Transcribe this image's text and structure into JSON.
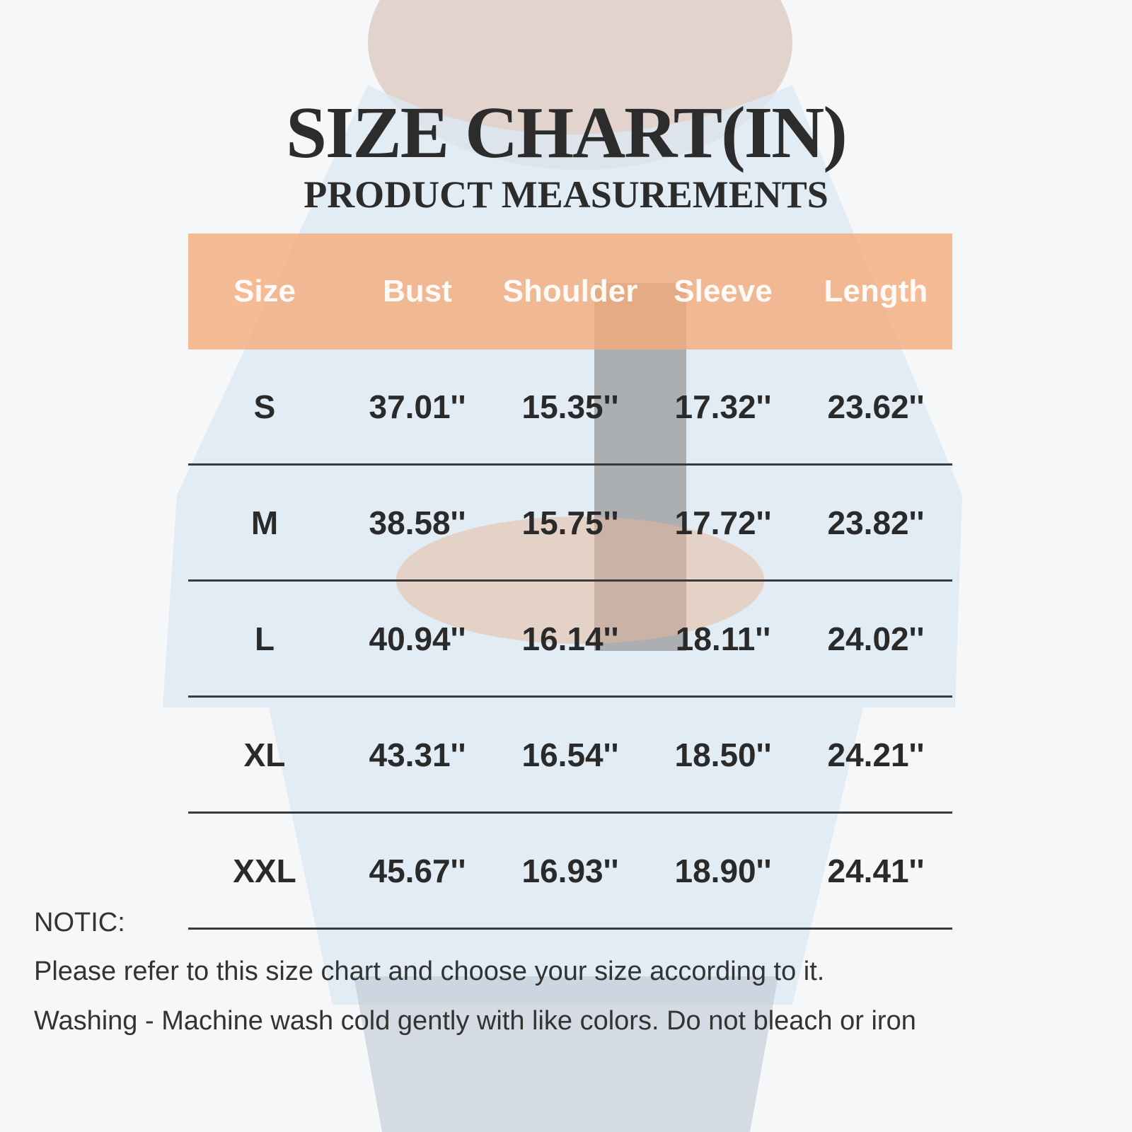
{
  "header": {
    "title": "SIZE CHART(IN)",
    "subtitle": "PRODUCT MEASUREMENTS"
  },
  "table": {
    "columns": [
      "Size",
      "Bust",
      "Shoulder",
      "Sleeve",
      "Length"
    ],
    "rows": [
      [
        "S",
        "37.01''",
        "15.35''",
        "17.32''",
        "23.62''"
      ],
      [
        "M",
        "38.58''",
        "15.75''",
        "17.72''",
        "23.82''"
      ],
      [
        "L",
        "40.94''",
        "16.14''",
        "18.11''",
        "24.02''"
      ],
      [
        "XL",
        "43.31''",
        "16.54''",
        "18.50''",
        "24.21''"
      ],
      [
        "XXL",
        "45.67''",
        "16.93''",
        "18.90''",
        "24.41''"
      ]
    ]
  },
  "notes": {
    "label": "NOTIC:",
    "lines": [
      "Please refer to this size chart and choose your size according to it.",
      "Washing - Machine wash cold gently with like colors. Do not bleach or iron"
    ]
  }
}
